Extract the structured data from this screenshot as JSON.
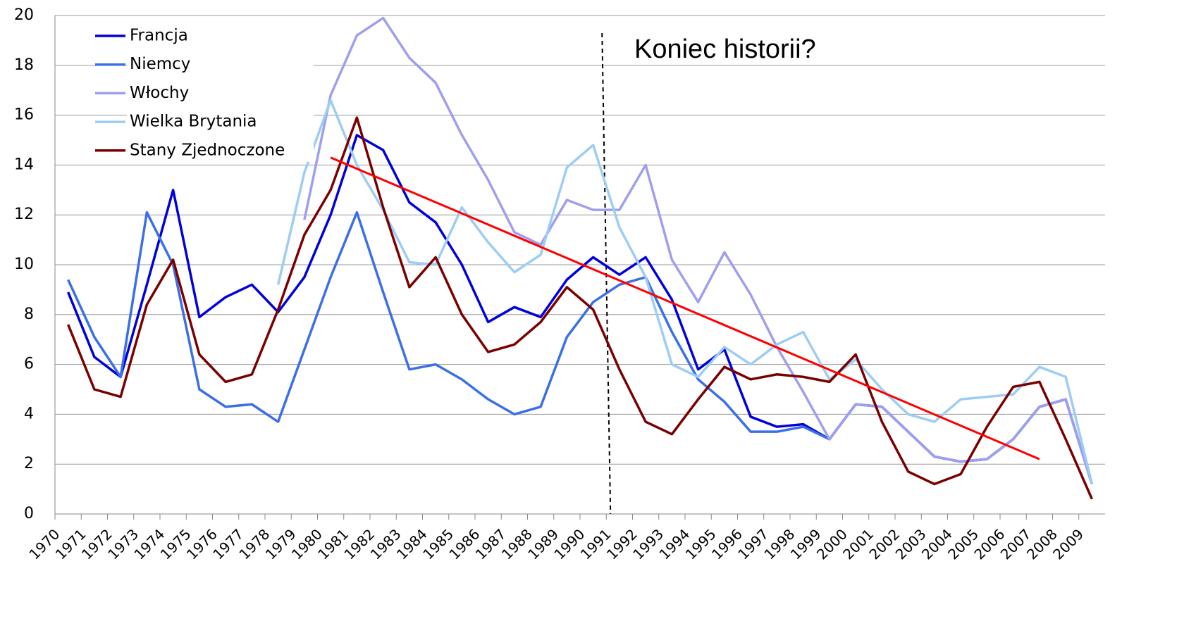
{
  "chart_data": {
    "type": "line",
    "categories": [
      "1970",
      "1971",
      "1972",
      "1973",
      "1974",
      "1975",
      "1976",
      "1977",
      "1978",
      "1979",
      "1980",
      "1981",
      "1982",
      "1983",
      "1984",
      "1985",
      "1986",
      "1987",
      "1988",
      "1989",
      "1990",
      "1991",
      "1992",
      "1993",
      "1994",
      "1995",
      "1996",
      "1997",
      "1998",
      "1999",
      "2000",
      "2001",
      "2002",
      "2003",
      "2004",
      "2005",
      "2006",
      "2007",
      "2008",
      "2009"
    ],
    "series": [
      {
        "name": "Francja",
        "color": "#0000dd",
        "values": [
          8.9,
          6.3,
          5.5,
          9.2,
          13.0,
          7.9,
          8.7,
          9.2,
          8.1,
          9.5,
          12.0,
          15.2,
          14.6,
          12.5,
          11.7,
          10.0,
          7.7,
          8.3,
          7.9,
          9.4,
          10.3,
          9.6,
          10.3,
          8.6,
          5.8,
          6.6,
          3.9,
          3.5,
          3.6,
          3.0,
          4.4,
          4.3,
          3.3,
          2.3,
          2.1,
          2.2,
          3.0,
          4.3,
          4.6,
          1.2
        ]
      },
      {
        "name": "Niemcy",
        "color": "#3b6fe8",
        "values": [
          9.4,
          7.1,
          5.5,
          12.1,
          10.0,
          5.0,
          4.3,
          4.4,
          3.7,
          6.6,
          9.5,
          12.1,
          8.9,
          5.8,
          6.0,
          5.4,
          4.6,
          4.0,
          4.3,
          7.1,
          8.5,
          9.2,
          9.5,
          7.3,
          5.4,
          4.5,
          3.3,
          3.3,
          3.5,
          3.0,
          4.4,
          4.3,
          3.3,
          2.3,
          2.1,
          2.2,
          3.0,
          4.3,
          4.6,
          1.2
        ]
      },
      {
        "name": "Włochy",
        "color": "#9f9ff0",
        "values": [
          null,
          null,
          null,
          null,
          null,
          null,
          null,
          null,
          null,
          11.8,
          16.8,
          19.2,
          19.9,
          18.3,
          17.3,
          15.2,
          13.4,
          11.3,
          10.8,
          12.6,
          12.2,
          12.2,
          14.0,
          10.2,
          8.5,
          10.5,
          8.8,
          6.7,
          4.9,
          3.0,
          4.4,
          4.3,
          3.3,
          2.3,
          2.1,
          2.2,
          3.0,
          4.3,
          4.6,
          1.2
        ]
      },
      {
        "name": "Wielka Brytania",
        "color": "#9dcdf5",
        "values": [
          null,
          null,
          null,
          null,
          null,
          null,
          null,
          null,
          9.2,
          13.7,
          16.6,
          14.0,
          12.2,
          10.1,
          10.0,
          12.3,
          10.9,
          9.7,
          10.4,
          13.9,
          14.8,
          11.5,
          9.5,
          6.0,
          5.5,
          6.7,
          6.0,
          6.8,
          7.3,
          5.4,
          6.2,
          5.0,
          4.0,
          3.7,
          4.6,
          4.7,
          4.8,
          5.9,
          5.5,
          1.2
        ]
      },
      {
        "name": "Stany Zjednoczone",
        "color": "#7a0000",
        "values": [
          7.6,
          5.0,
          4.7,
          8.4,
          10.2,
          6.4,
          5.3,
          5.6,
          8.2,
          11.2,
          13.0,
          15.9,
          12.3,
          9.1,
          10.3,
          8.0,
          6.5,
          6.8,
          7.7,
          9.1,
          8.2,
          5.8,
          3.7,
          3.2,
          4.6,
          5.9,
          5.4,
          5.6,
          5.5,
          5.3,
          6.4,
          3.7,
          1.7,
          1.2,
          1.6,
          3.5,
          5.1,
          5.3,
          3.0,
          0.6
        ]
      }
    ],
    "trend": {
      "color": "#ff0000",
      "categories": [
        "1980",
        "2007"
      ],
      "values": [
        14.3,
        2.2
      ]
    },
    "annotation": {
      "text": "Koniec historii?",
      "category": "1991"
    },
    "ylim": [
      0,
      20
    ],
    "yticks": [
      0,
      2,
      4,
      6,
      8,
      10,
      12,
      14,
      16,
      18,
      20
    ],
    "grid": true,
    "legend": "upper left"
  }
}
